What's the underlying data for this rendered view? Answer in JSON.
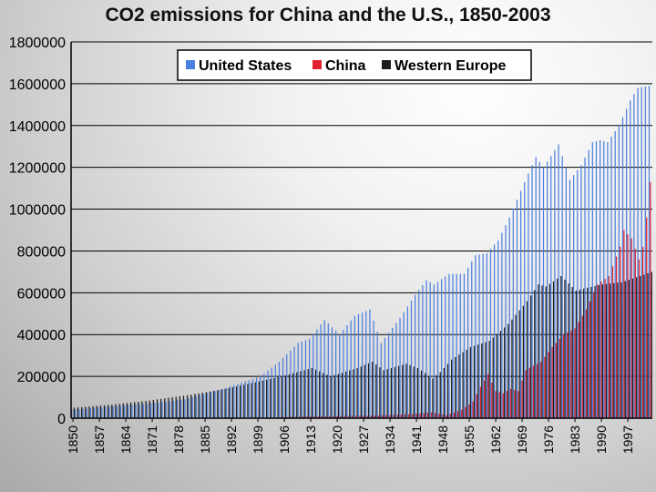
{
  "chart_data": {
    "type": "bar",
    "title": "CO2 emissions for China and the U.S., 1850-2003",
    "xlabel": "",
    "ylabel": "",
    "ylim": [
      0,
      1800000
    ],
    "yticks": [
      0,
      200000,
      400000,
      600000,
      800000,
      1000000,
      1200000,
      1400000,
      1600000,
      1800000
    ],
    "xtick_labels": [
      "1850",
      "1857",
      "1864",
      "1871",
      "1878",
      "1885",
      "1892",
      "1899",
      "1906",
      "1913",
      "1920",
      "1927",
      "1934",
      "1941",
      "1948",
      "1955",
      "1962",
      "1969",
      "1976",
      "1983",
      "1990",
      "1997"
    ],
    "x_start": 1850,
    "x_end": 2003,
    "legend": {
      "position": "top",
      "entries": [
        "United States",
        "China",
        "Western Europe"
      ]
    },
    "colors": {
      "United States": "#4a7fe0",
      "China": "#e0212f",
      "Western Europe": "#1c1c1c"
    },
    "series": [
      {
        "name": "United States",
        "keyframes": [
          [
            1850,
            40000
          ],
          [
            1860,
            55000
          ],
          [
            1870,
            70000
          ],
          [
            1880,
            90000
          ],
          [
            1890,
            140000
          ],
          [
            1900,
            200000
          ],
          [
            1905,
            270000
          ],
          [
            1910,
            360000
          ],
          [
            1913,
            380000
          ],
          [
            1917,
            470000
          ],
          [
            1921,
            400000
          ],
          [
            1925,
            490000
          ],
          [
            1929,
            520000
          ],
          [
            1932,
            360000
          ],
          [
            1937,
            480000
          ],
          [
            1941,
            590000
          ],
          [
            1944,
            660000
          ],
          [
            1946,
            640000
          ],
          [
            1950,
            690000
          ],
          [
            1954,
            690000
          ],
          [
            1957,
            780000
          ],
          [
            1960,
            790000
          ],
          [
            1963,
            850000
          ],
          [
            1966,
            960000
          ],
          [
            1970,
            1130000
          ],
          [
            1973,
            1250000
          ],
          [
            1975,
            1200000
          ],
          [
            1979,
            1310000
          ],
          [
            1982,
            1140000
          ],
          [
            1985,
            1210000
          ],
          [
            1988,
            1320000
          ],
          [
            1990,
            1330000
          ],
          [
            1992,
            1320000
          ],
          [
            1995,
            1400000
          ],
          [
            1998,
            1520000
          ],
          [
            2000,
            1580000
          ],
          [
            2003,
            1590000
          ]
        ]
      },
      {
        "name": "China",
        "keyframes": [
          [
            1850,
            0
          ],
          [
            1900,
            2000
          ],
          [
            1910,
            7000
          ],
          [
            1930,
            12000
          ],
          [
            1940,
            20000
          ],
          [
            1945,
            28000
          ],
          [
            1949,
            15000
          ],
          [
            1953,
            40000
          ],
          [
            1956,
            80000
          ],
          [
            1958,
            150000
          ],
          [
            1960,
            210000
          ],
          [
            1962,
            130000
          ],
          [
            1964,
            120000
          ],
          [
            1966,
            140000
          ],
          [
            1968,
            130000
          ],
          [
            1970,
            230000
          ],
          [
            1974,
            270000
          ],
          [
            1977,
            340000
          ],
          [
            1980,
            400000
          ],
          [
            1983,
            430000
          ],
          [
            1986,
            520000
          ],
          [
            1989,
            640000
          ],
          [
            1992,
            680000
          ],
          [
            1995,
            820000
          ],
          [
            1996,
            900000
          ],
          [
            1998,
            860000
          ],
          [
            2000,
            760000
          ],
          [
            2001,
            820000
          ],
          [
            2002,
            960000
          ],
          [
            2003,
            1130000
          ]
        ]
      },
      {
        "name": "Western Europe",
        "keyframes": [
          [
            1850,
            50000
          ],
          [
            1860,
            65000
          ],
          [
            1870,
            85000
          ],
          [
            1880,
            110000
          ],
          [
            1890,
            140000
          ],
          [
            1900,
            180000
          ],
          [
            1905,
            200000
          ],
          [
            1913,
            240000
          ],
          [
            1918,
            200000
          ],
          [
            1925,
            240000
          ],
          [
            1929,
            270000
          ],
          [
            1932,
            230000
          ],
          [
            1938,
            260000
          ],
          [
            1941,
            240000
          ],
          [
            1945,
            190000
          ],
          [
            1947,
            220000
          ],
          [
            1950,
            280000
          ],
          [
            1955,
            340000
          ],
          [
            1960,
            370000
          ],
          [
            1965,
            450000
          ],
          [
            1970,
            560000
          ],
          [
            1973,
            640000
          ],
          [
            1975,
            630000
          ],
          [
            1979,
            680000
          ],
          [
            1983,
            610000
          ],
          [
            1985,
            620000
          ],
          [
            1990,
            640000
          ],
          [
            1995,
            650000
          ],
          [
            2000,
            680000
          ],
          [
            2003,
            700000
          ]
        ]
      }
    ]
  }
}
